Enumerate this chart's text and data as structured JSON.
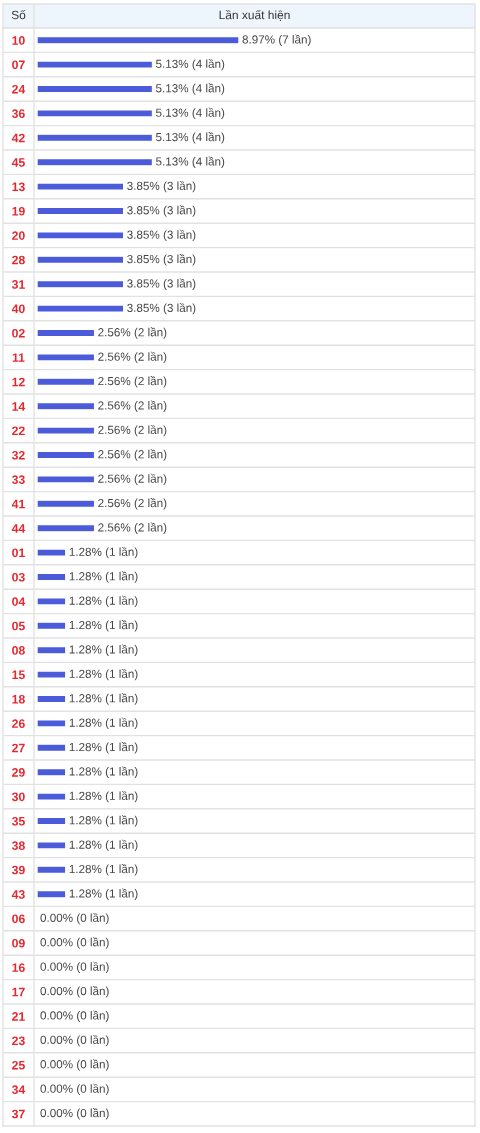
{
  "chart_data": {
    "type": "bar",
    "orientation": "horizontal",
    "xlabel": "Lần xuất hiện",
    "ylabel": "Số",
    "categories": [
      "10",
      "07",
      "24",
      "36",
      "42",
      "45",
      "13",
      "19",
      "20",
      "28",
      "31",
      "40",
      "02",
      "11",
      "12",
      "14",
      "22",
      "32",
      "33",
      "41",
      "44",
      "01",
      "03",
      "04",
      "05",
      "08",
      "15",
      "18",
      "26",
      "27",
      "29",
      "30",
      "35",
      "38",
      "39",
      "43",
      "06",
      "09",
      "16",
      "17",
      "21",
      "23",
      "25",
      "34",
      "37"
    ],
    "values": [
      8.97,
      5.13,
      5.13,
      5.13,
      5.13,
      5.13,
      3.85,
      3.85,
      3.85,
      3.85,
      3.85,
      3.85,
      2.56,
      2.56,
      2.56,
      2.56,
      2.56,
      2.56,
      2.56,
      2.56,
      2.56,
      1.28,
      1.28,
      1.28,
      1.28,
      1.28,
      1.28,
      1.28,
      1.28,
      1.28,
      1.28,
      1.28,
      1.28,
      1.28,
      1.28,
      1.28,
      0,
      0,
      0,
      0,
      0,
      0,
      0,
      0,
      0
    ],
    "value_labels": [
      "8.97% (7 lần)",
      "5.13% (4 lần)",
      "5.13% (4 lần)",
      "5.13% (4 lần)",
      "5.13% (4 lần)",
      "5.13% (4 lần)",
      "3.85% (3 lần)",
      "3.85% (3 lần)",
      "3.85% (3 lần)",
      "3.85% (3 lần)",
      "3.85% (3 lần)",
      "3.85% (3 lần)",
      "2.56% (2 lần)",
      "2.56% (2 lần)",
      "2.56% (2 lần)",
      "2.56% (2 lần)",
      "2.56% (2 lần)",
      "2.56% (2 lần)",
      "2.56% (2 lần)",
      "2.56% (2 lần)",
      "2.56% (2 lần)",
      "1.28% (1 lần)",
      "1.28% (1 lần)",
      "1.28% (1 lần)",
      "1.28% (1 lần)",
      "1.28% (1 lần)",
      "1.28% (1 lần)",
      "1.28% (1 lần)",
      "1.28% (1 lần)",
      "1.28% (1 lần)",
      "1.28% (1 lần)",
      "1.28% (1 lần)",
      "1.28% (1 lần)",
      "1.28% (1 lần)",
      "1.28% (1 lần)",
      "1.28% (1 lần)",
      "0.00% (0 lần)",
      "0.00% (0 lần)",
      "0.00% (0 lần)",
      "0.00% (0 lần)",
      "0.00% (0 lần)",
      "0.00% (0 lần)",
      "0.00% (0 lần)",
      "0.00% (0 lần)",
      "0.00% (0 lần)"
    ],
    "color": "#4b5bd9",
    "grid": "y",
    "tick_labels": "y"
  }
}
